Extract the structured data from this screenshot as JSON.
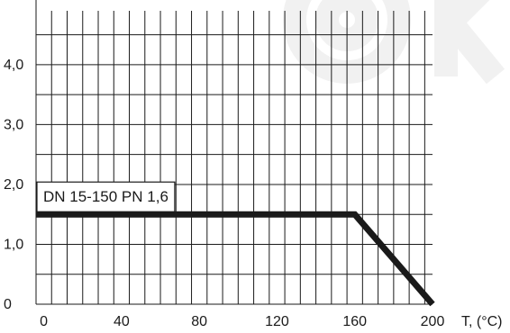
{
  "chart_data": {
    "type": "line",
    "xlabel": "T, (°C)",
    "ylabel": "",
    "xlim": [
      -4,
      200
    ],
    "ylim": [
      0,
      4.9
    ],
    "x_ticks": [
      {
        "value": 0,
        "label": "0"
      },
      {
        "value": 40,
        "label": "40"
      },
      {
        "value": 80,
        "label": "80"
      },
      {
        "value": 120,
        "label": "120"
      },
      {
        "value": 160,
        "label": "160"
      },
      {
        "value": 200,
        "label": "200"
      }
    ],
    "y_ticks": [
      {
        "value": 0,
        "label": "0"
      },
      {
        "value": 1,
        "label": "1,0"
      },
      {
        "value": 2,
        "label": "2,0"
      },
      {
        "value": 3,
        "label": "3,0"
      },
      {
        "value": 4,
        "label": "4,0"
      }
    ],
    "grid": true,
    "grid_x_step": 8,
    "grid_y_step": 0.5,
    "series": [
      {
        "name": "DN 15-150 PN 1,6",
        "points": [
          [
            -4,
            1.5
          ],
          [
            160,
            1.5
          ],
          [
            200,
            0
          ]
        ]
      }
    ],
    "annotations": [
      {
        "text": "DN 15-150 PN 1,6",
        "x": -4,
        "y": 1.8
      }
    ]
  },
  "colors": {
    "ink": "#1a1a1a",
    "background": "#ffffff",
    "watermark": "#f1f1f1"
  }
}
